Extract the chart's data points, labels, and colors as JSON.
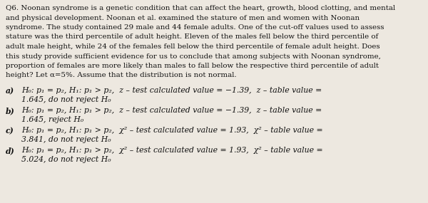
{
  "bg_color": "#ede8e0",
  "text_color": "#111111",
  "font_family": "DejaVu Serif",
  "para_fontsize": 7.4,
  "opt_fontsize": 7.8,
  "para_lines": [
    "Q6. Noonan syndrome is a genetic condition that can affect the heart, growth, blood clotting, and mental",
    "and physical development. Noonan et al. examined the stature of men and women with Noonan",
    "syndrome. The study contained 29 male and 44 female adults. One of the cut-off values used to assess",
    "stature was the third percentile of adult height. Eleven of the males fell below the third percentile of",
    "adult male height, while 24 of the females fell below the third percentile of female adult height. Does",
    "this study provide sufficient evidence for us to conclude that among subjects with Noonan syndrome,",
    "proportion of females are more likely than males to fall below the respective third percentile of adult",
    "height? Let α=5%. Assume that the distribution is not normal."
  ],
  "options": [
    {
      "label": "a)",
      "line1": "H₀: p₁ = p₂, H₁: p₁ > p₂,  z – test calculated value = −1.39,  z – table value =",
      "line2": "1.645, do not reject H₀"
    },
    {
      "label": "b)",
      "line1": "H₀: p₁ = p₂, H₁: p₁ > p₂,  z – test calculated value = −1.39,  z – table value =",
      "line2": "1.645, reject H₀"
    },
    {
      "label": "c)",
      "line1": "H₀: p₁ = p₂, H₁: p₁ > p₂,  χ² – test calculated value = 1.93,  χ² – table value =",
      "line2": "3.841, do not reject H₀"
    },
    {
      "label": "d)",
      "line1": "H₀: p₁ = p₂, H₁: p₁ > p₂,  χ² – test calculated value = 1.93,  χ² – table value =",
      "line2": "5.024, do not reject H₀"
    }
  ]
}
